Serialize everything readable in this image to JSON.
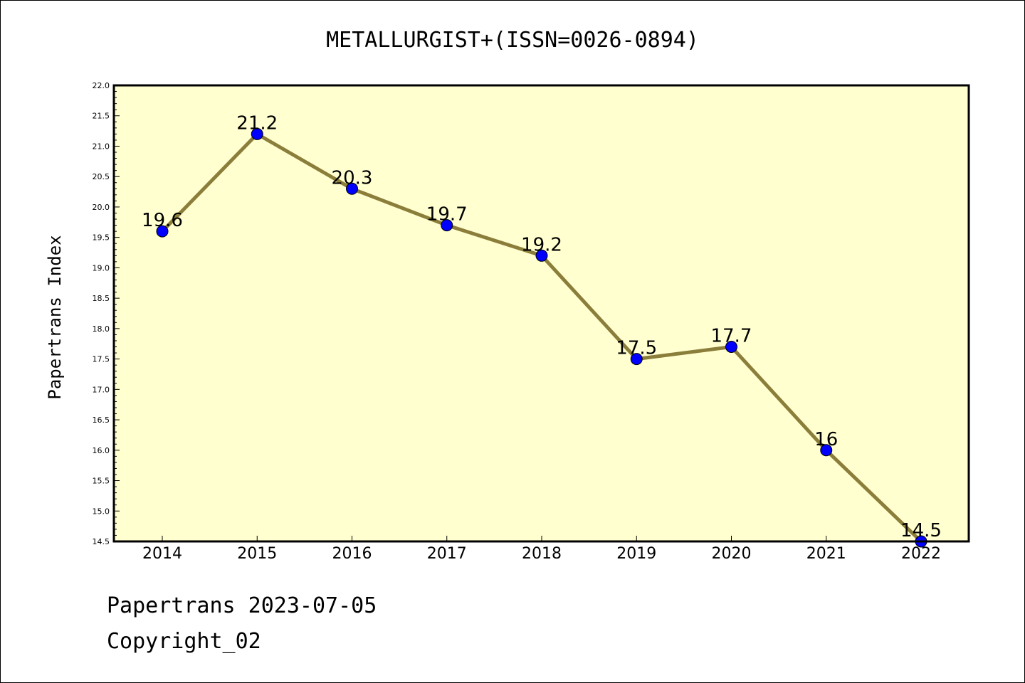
{
  "chart_data": {
    "type": "line",
    "title": "METALLURGIST+(ISSN=0026-0894)",
    "xlabel": "",
    "ylabel": "Papertrans Index",
    "categories": [
      "2014",
      "2015",
      "2016",
      "2017",
      "2018",
      "2019",
      "2020",
      "2021",
      "2022"
    ],
    "series": [
      {
        "values": [
          19.6,
          21.2,
          20.3,
          19.7,
          19.2,
          17.5,
          17.7,
          16.0,
          14.5
        ],
        "data_labels": [
          "19.6",
          "21.2",
          "20.3",
          "19.7",
          "19.2",
          "17.5",
          "17.7",
          "16",
          "14.5"
        ]
      }
    ],
    "ylim": [
      14.5,
      22.0
    ],
    "yticks": [
      "14.5",
      "15.0",
      "15.5",
      "16.0",
      "16.5",
      "17.0",
      "17.5",
      "18.0",
      "18.5",
      "19.0",
      "19.5",
      "20.0",
      "20.5",
      "21.0",
      "21.5",
      "22.0"
    ],
    "grid": false,
    "legend": "none",
    "colors": {
      "plot_background": "#ffffd0",
      "line": "#8b7d3a",
      "marker": "#0000ff"
    }
  },
  "footer": {
    "line1": "Papertrans 2023-07-05",
    "line2": "Copyright_02"
  }
}
